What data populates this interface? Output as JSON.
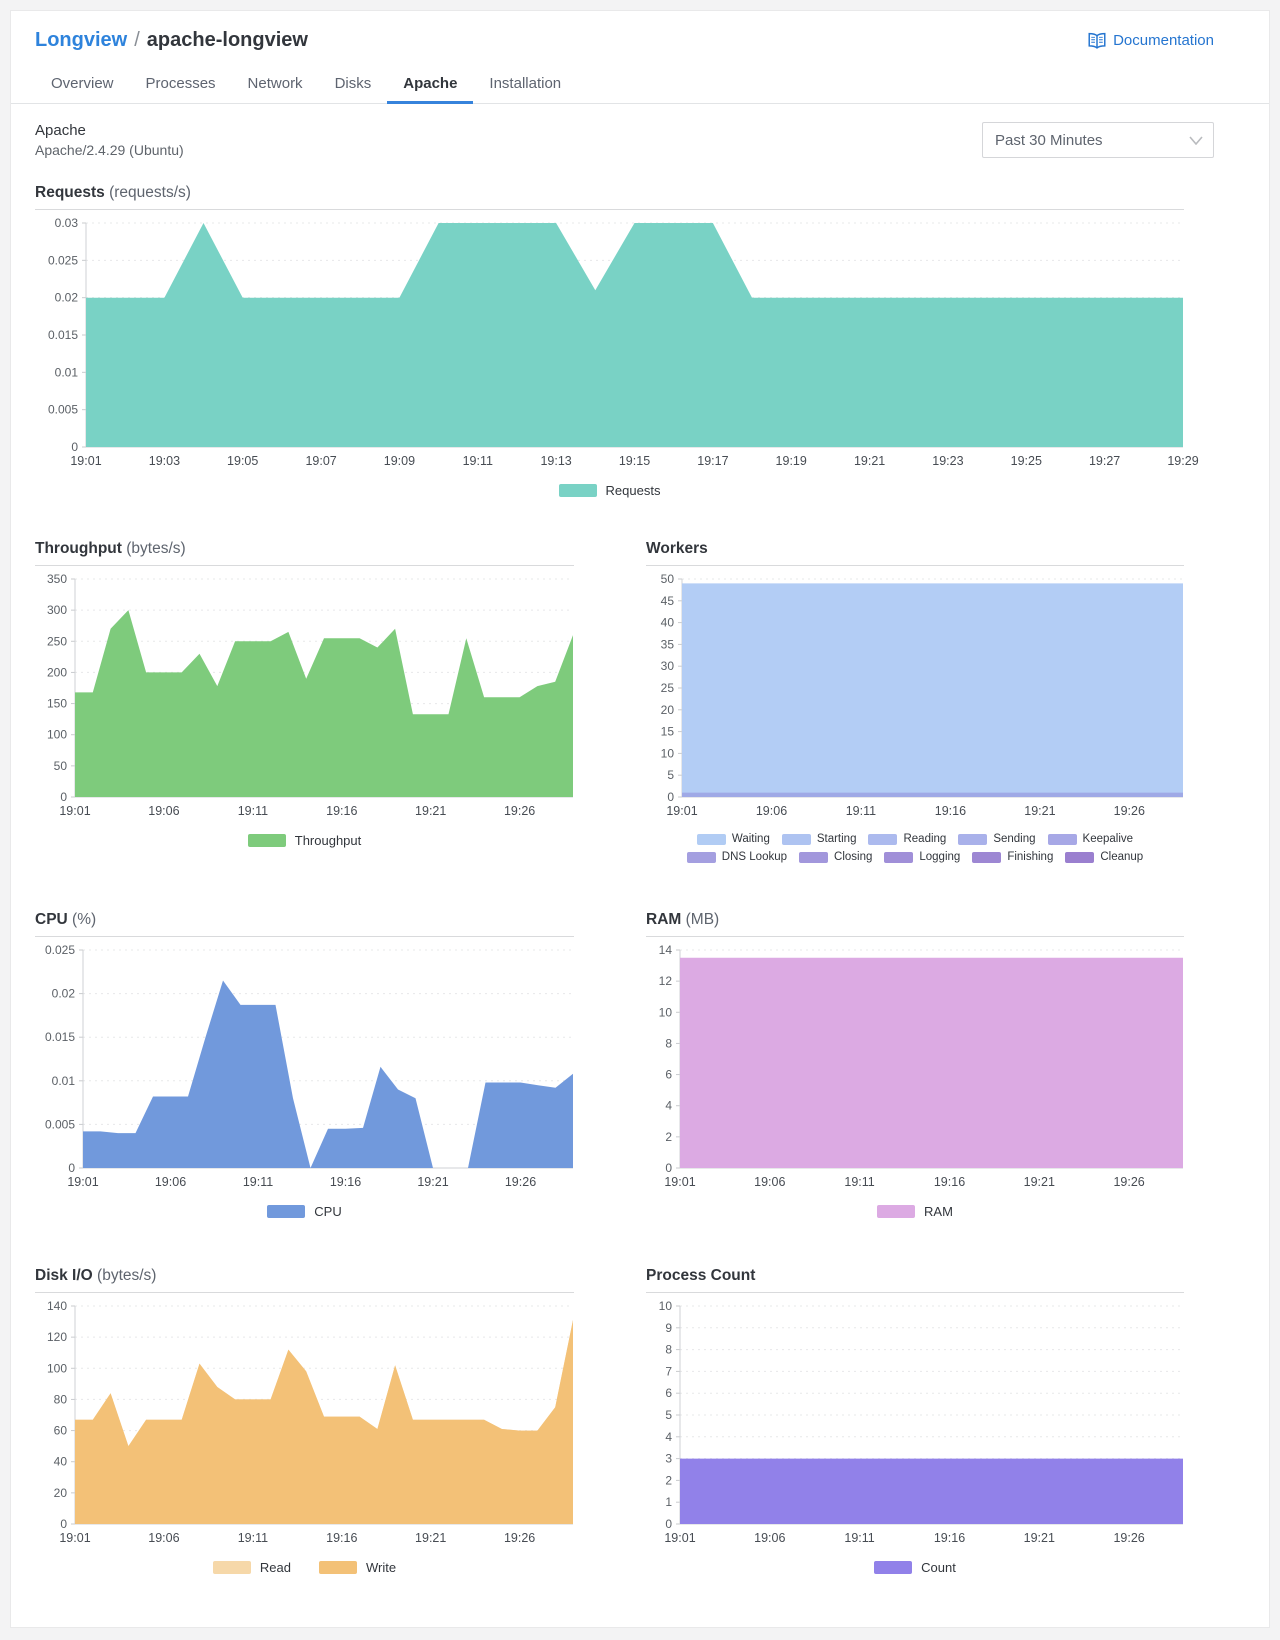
{
  "header": {
    "breadcrumb_parent": "Longview",
    "breadcrumb_separator": "/",
    "breadcrumb_current": "apache-longview",
    "documentation_label": "Documentation"
  },
  "tabs": [
    {
      "label": "Overview",
      "active": false
    },
    {
      "label": "Processes",
      "active": false
    },
    {
      "label": "Network",
      "active": false
    },
    {
      "label": "Disks",
      "active": false
    },
    {
      "label": "Apache",
      "active": true
    },
    {
      "label": "Installation",
      "active": false
    }
  ],
  "section": {
    "title": "Apache",
    "subtitle": "Apache/2.4.29 (Ubuntu)",
    "time_range": "Past 30 Minutes"
  },
  "colors": {
    "accent_blue": "#3683dc",
    "link_blue": "#2575d0",
    "requests_teal": "#79d2c5",
    "throughput_green": "#7ecb7c",
    "workers_blue": "#b3cdf5",
    "cpu_blue": "#7199dc",
    "ram_pink": "#dcaae3",
    "disk_read_orange": "#f6d8a9",
    "disk_write_orange": "#f3c177",
    "count_purple": "#9181e9"
  },
  "chart_data": [
    {
      "type": "area",
      "title": "Requests",
      "unit": "(requests/s)",
      "ylim": [
        0,
        0.03
      ],
      "yticks": [
        0,
        0.005,
        0.01,
        0.015,
        0.02,
        0.025,
        0.03
      ],
      "xticks": [
        "19:01",
        "19:03",
        "19:05",
        "19:07",
        "19:09",
        "19:11",
        "19:13",
        "19:15",
        "19:17",
        "19:19",
        "19:21",
        "19:23",
        "19:25",
        "19:27",
        "19:29"
      ],
      "xtick_minutes": [
        0,
        2,
        4,
        6,
        8,
        10,
        12,
        14,
        16,
        18,
        20,
        22,
        24,
        26,
        28
      ],
      "total_minutes": 28,
      "grid": true,
      "legend_position": "bottom",
      "series": [
        {
          "name": "Requests",
          "color": "#79d2c5",
          "values": [
            0.02,
            0.02,
            0.02,
            0.03,
            0.02,
            0.02,
            0.02,
            0.02,
            0.02,
            0.03,
            0.03,
            0.03,
            0.03,
            0.021,
            0.03,
            0.03,
            0.03,
            0.02,
            0.02,
            0.02,
            0.02,
            0.02,
            0.02,
            0.02,
            0.02,
            0.02,
            0.02,
            0.02,
            0.02
          ]
        }
      ],
      "legend": [
        [
          {
            "label": "Requests",
            "color": "#79d2c5"
          }
        ]
      ]
    },
    {
      "type": "area",
      "title": "Throughput",
      "unit": "(bytes/s)",
      "ylim": [
        0,
        350
      ],
      "yticks": [
        0,
        50,
        100,
        150,
        200,
        250,
        300,
        350
      ],
      "xticks": [
        "19:01",
        "19:06",
        "19:11",
        "19:16",
        "19:21",
        "19:26"
      ],
      "xtick_minutes": [
        0,
        5,
        10,
        15,
        20,
        25
      ],
      "total_minutes": 28,
      "grid": true,
      "legend_position": "bottom",
      "series": [
        {
          "name": "Throughput",
          "color": "#7ecb7c",
          "values": [
            168,
            168,
            270,
            300,
            200,
            200,
            200,
            230,
            178,
            250,
            250,
            250,
            265,
            190,
            255,
            255,
            255,
            240,
            270,
            133,
            133,
            133,
            255,
            160,
            160,
            160,
            178,
            185,
            260
          ]
        }
      ],
      "legend": [
        [
          {
            "label": "Throughput",
            "color": "#7ecb7c"
          }
        ]
      ]
    },
    {
      "type": "area",
      "title": "Workers",
      "unit": "",
      "ylim": [
        0,
        50
      ],
      "yticks": [
        0,
        5,
        10,
        15,
        20,
        25,
        30,
        35,
        40,
        45,
        50
      ],
      "xticks": [
        "19:01",
        "19:06",
        "19:11",
        "19:16",
        "19:21",
        "19:26"
      ],
      "xtick_minutes": [
        0,
        5,
        10,
        15,
        20,
        25
      ],
      "total_minutes": 28,
      "grid": true,
      "legend_position": "bottom",
      "series": [
        {
          "name": "Waiting",
          "color": "#b3cdf5",
          "values": [
            49,
            49,
            49,
            49,
            49,
            49,
            49,
            49,
            49,
            49,
            49,
            49,
            49,
            49,
            49,
            49,
            49,
            49,
            49,
            49,
            49,
            49,
            49,
            49,
            49,
            49,
            49,
            49,
            49
          ]
        },
        {
          "name": "Sending",
          "color": "#9fa9e6",
          "values": [
            1,
            1,
            1,
            1,
            1,
            1,
            1,
            1,
            1,
            1,
            1,
            1,
            1,
            1,
            1,
            1,
            1,
            1,
            1,
            1,
            1,
            1,
            1,
            1,
            1,
            1,
            1,
            1,
            1
          ]
        }
      ],
      "legend": [
        [
          {
            "label": "Waiting",
            "color": "#b1ccf4"
          },
          {
            "label": "Starting",
            "color": "#aec3f1"
          },
          {
            "label": "Reading",
            "color": "#acbaee"
          },
          {
            "label": "Sending",
            "color": "#a9b1ea"
          },
          {
            "label": "Keepalive",
            "color": "#a7a8e6"
          }
        ],
        [
          {
            "label": "DNS Lookup",
            "color": "#a49fe0"
          },
          {
            "label": "Closing",
            "color": "#a297dc"
          },
          {
            "label": "Logging",
            "color": "#a08fd8"
          },
          {
            "label": "Finishing",
            "color": "#9d87d3"
          },
          {
            "label": "Cleanup",
            "color": "#9a7fcf"
          }
        ]
      ]
    },
    {
      "type": "area",
      "title": "CPU",
      "unit": "(%)",
      "ylim": [
        0,
        0.025
      ],
      "yticks": [
        0,
        0.005,
        0.01,
        0.015,
        0.02,
        0.025
      ],
      "xticks": [
        "19:01",
        "19:06",
        "19:11",
        "19:16",
        "19:21",
        "19:26"
      ],
      "xtick_minutes": [
        0,
        5,
        10,
        15,
        20,
        25
      ],
      "total_minutes": 28,
      "grid": true,
      "legend_position": "bottom",
      "series": [
        {
          "name": "CPU",
          "color": "#7199dc",
          "values": [
            0.0042,
            0.0042,
            0.004,
            0.004,
            0.0082,
            0.0082,
            0.0082,
            0.015,
            0.0215,
            0.0187,
            0.0187,
            0.0187,
            0.008,
            0,
            0.0045,
            0.0045,
            0.0046,
            0.0116,
            0.009,
            0.008,
            0,
            0,
            0,
            0.0098,
            0.0098,
            0.0098,
            0.0095,
            0.0092,
            0.0108
          ]
        }
      ],
      "legend": [
        [
          {
            "label": "CPU",
            "color": "#7199dc"
          }
        ]
      ]
    },
    {
      "type": "area",
      "title": "RAM",
      "unit": "(MB)",
      "ylim": [
        0,
        14
      ],
      "yticks": [
        0,
        2,
        4,
        6,
        8,
        10,
        12,
        14
      ],
      "xticks": [
        "19:01",
        "19:06",
        "19:11",
        "19:16",
        "19:21",
        "19:26"
      ],
      "xtick_minutes": [
        0,
        5,
        10,
        15,
        20,
        25
      ],
      "total_minutes": 28,
      "grid": true,
      "legend_position": "bottom",
      "series": [
        {
          "name": "RAM",
          "color": "#dcaae3",
          "values": [
            13.5,
            13.5,
            13.5,
            13.5,
            13.5,
            13.5,
            13.5,
            13.5,
            13.5,
            13.5,
            13.5,
            13.5,
            13.5,
            13.5,
            13.5,
            13.5,
            13.5,
            13.5,
            13.5,
            13.5,
            13.5,
            13.5,
            13.5,
            13.5,
            13.5,
            13.5,
            13.5,
            13.5,
            13.5
          ]
        }
      ],
      "legend": [
        [
          {
            "label": "RAM",
            "color": "#dcaae3"
          }
        ]
      ]
    },
    {
      "type": "area",
      "title": "Disk I/O",
      "unit": "(bytes/s)",
      "ylim": [
        0,
        140
      ],
      "yticks": [
        0,
        20,
        40,
        60,
        80,
        100,
        120,
        140
      ],
      "xticks": [
        "19:01",
        "19:06",
        "19:11",
        "19:16",
        "19:21",
        "19:26"
      ],
      "xtick_minutes": [
        0,
        5,
        10,
        15,
        20,
        25
      ],
      "total_minutes": 28,
      "grid": true,
      "legend_position": "bottom",
      "series": [
        {
          "name": "Read",
          "color": "#f6d8a9",
          "values": [
            67,
            67,
            84,
            50,
            67,
            67,
            67,
            103,
            88,
            80,
            80,
            80,
            112,
            98,
            69,
            69,
            69,
            61,
            102,
            67,
            67,
            67,
            67,
            67,
            61,
            60,
            60,
            75,
            131
          ]
        },
        {
          "name": "Write",
          "color": "#f3c177",
          "values": [
            67,
            67,
            84,
            50,
            67,
            67,
            67,
            103,
            88,
            80,
            80,
            80,
            112,
            98,
            69,
            69,
            69,
            61,
            102,
            67,
            67,
            67,
            67,
            67,
            61,
            60,
            60,
            75,
            131
          ]
        }
      ],
      "legend": [
        [
          {
            "label": "Read",
            "color": "#f6d8a9"
          },
          {
            "label": "Write",
            "color": "#f3c177"
          }
        ]
      ]
    },
    {
      "type": "area",
      "title": "Process Count",
      "unit": "",
      "ylim": [
        0,
        10
      ],
      "yticks": [
        0,
        1,
        2,
        3,
        4,
        5,
        6,
        7,
        8,
        9,
        10
      ],
      "xticks": [
        "19:01",
        "19:06",
        "19:11",
        "19:16",
        "19:21",
        "19:26"
      ],
      "xtick_minutes": [
        0,
        5,
        10,
        15,
        20,
        25
      ],
      "total_minutes": 28,
      "grid": true,
      "legend_position": "bottom",
      "series": [
        {
          "name": "Count",
          "color": "#9181e9",
          "values": [
            3,
            3,
            3,
            3,
            3,
            3,
            3,
            3,
            3,
            3,
            3,
            3,
            3,
            3,
            3,
            3,
            3,
            3,
            3,
            3,
            3,
            3,
            3,
            3,
            3,
            3,
            3,
            3,
            3
          ]
        }
      ],
      "legend": [
        [
          {
            "label": "Count",
            "color": "#9181e9"
          }
        ]
      ]
    }
  ]
}
